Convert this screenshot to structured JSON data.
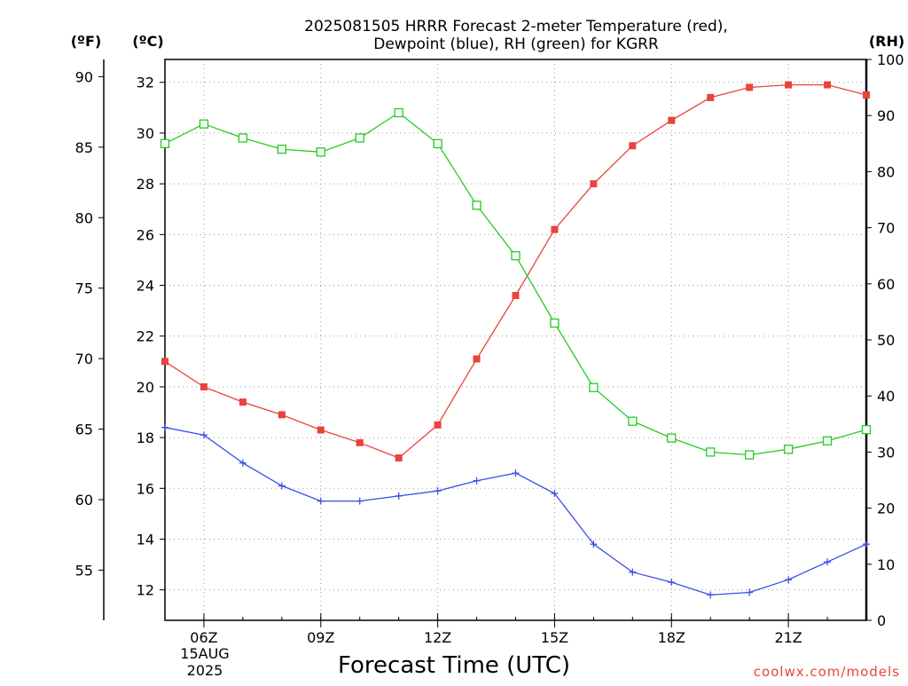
{
  "title_lines": [
    "2025081505 HRRR Forecast 2-meter Temperature (red),",
    "Dewpoint (blue), RH (green) for KGRR"
  ],
  "axis_units": {
    "fahrenheit": "(ºF)",
    "celsius": "(ºC)",
    "rh": "(RH)"
  },
  "xlabel": "Forecast Time (UTC)",
  "credit": "coolwx.com/models",
  "date_label": {
    "day": "15AUG",
    "year": "2025"
  },
  "colors": {
    "temperature": "#e8443a",
    "dewpoint": "#3a4ee8",
    "rh": "#22cc22",
    "grid": "#999999"
  },
  "chart_data": {
    "type": "line",
    "x": [
      5,
      6,
      7,
      8,
      9,
      10,
      11,
      12,
      13,
      14,
      15,
      16,
      17,
      18,
      19,
      20,
      21,
      22,
      23
    ],
    "xlim": [
      5,
      23
    ],
    "x_ticks": [
      {
        "hour": 6,
        "label": "06Z"
      },
      {
        "hour": 9,
        "label": "09Z"
      },
      {
        "hour": 12,
        "label": "12Z"
      },
      {
        "hour": 15,
        "label": "15Z"
      },
      {
        "hour": 18,
        "label": "18Z"
      },
      {
        "hour": 21,
        "label": "21Z"
      }
    ],
    "celsius_axis": {
      "ylim": [
        10.8,
        32.9
      ],
      "ticks": [
        12,
        14,
        16,
        18,
        20,
        22,
        24,
        26,
        28,
        30,
        32
      ]
    },
    "fahrenheit_axis": {
      "ticks": [
        55,
        60,
        65,
        70,
        75,
        80,
        85,
        90
      ]
    },
    "rh_axis": {
      "ylim": [
        0,
        100
      ],
      "ticks": [
        0,
        10,
        20,
        30,
        40,
        50,
        60,
        70,
        80,
        90,
        100
      ]
    },
    "grid": true,
    "series": [
      {
        "key": "temperature",
        "axis": "celsius",
        "marker": "filled-square",
        "values": [
          21.0,
          20.0,
          19.4,
          18.9,
          18.3,
          17.8,
          17.2,
          18.5,
          21.1,
          23.6,
          26.2,
          28.0,
          29.5,
          30.5,
          31.4,
          31.8,
          31.9,
          31.9,
          31.5
        ]
      },
      {
        "key": "dewpoint",
        "axis": "celsius",
        "marker": "plus",
        "values": [
          18.4,
          18.1,
          17.0,
          16.1,
          15.5,
          15.5,
          15.7,
          15.9,
          16.3,
          16.6,
          15.8,
          13.8,
          12.7,
          12.3,
          11.8,
          11.9,
          12.4,
          13.1,
          13.8
        ]
      },
      {
        "key": "rh",
        "axis": "rh",
        "marker": "open-square",
        "values": [
          85,
          88.5,
          86,
          84,
          83.5,
          86,
          90.5,
          85,
          74,
          65,
          53,
          41.5,
          35.5,
          32.5,
          30,
          29.5,
          30.5,
          32,
          34
        ]
      }
    ]
  }
}
